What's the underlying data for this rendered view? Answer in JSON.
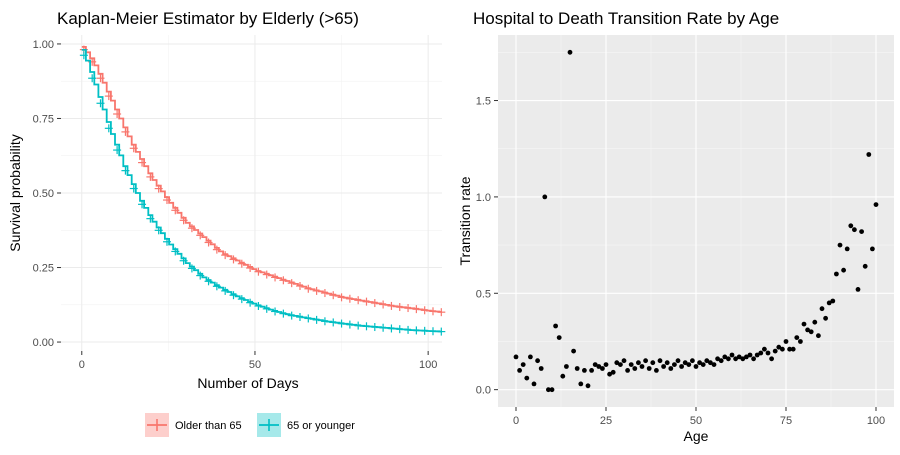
{
  "chart_data": [
    {
      "type": "line",
      "title": "Kaplan-Meier Estimator by Elderly (>65)",
      "xlabel": "Number of Days",
      "ylabel": "Survival probability",
      "xlim": [
        -6,
        104
      ],
      "ylim": [
        -0.03,
        1.03
      ],
      "x_ticks": [
        0,
        50,
        100
      ],
      "y_ticks": [
        0.0,
        0.25,
        0.5,
        0.75,
        1.0
      ],
      "y_tick_labels": [
        "0.00",
        "0.25",
        "0.50",
        "0.75",
        "1.00"
      ],
      "grid": true,
      "legend_position": "bottom",
      "series": [
        {
          "name": "Older than 65",
          "color": "#F8766D",
          "x": [
            0,
            2,
            4,
            6,
            8,
            10,
            12,
            14,
            16,
            18,
            20,
            25,
            30,
            35,
            40,
            45,
            50,
            55,
            60,
            65,
            70,
            75,
            80,
            85,
            90,
            95,
            100,
            104
          ],
          "y": [
            0.99,
            0.96,
            0.92,
            0.87,
            0.82,
            0.77,
            0.72,
            0.67,
            0.63,
            0.59,
            0.55,
            0.47,
            0.4,
            0.35,
            0.3,
            0.27,
            0.24,
            0.22,
            0.2,
            0.18,
            0.165,
            0.15,
            0.14,
            0.13,
            0.12,
            0.113,
            0.105,
            0.1
          ]
        },
        {
          "name": "65 or younger",
          "color": "#00BFC4",
          "x": [
            0,
            2,
            4,
            6,
            8,
            10,
            12,
            14,
            16,
            18,
            20,
            25,
            30,
            35,
            40,
            45,
            50,
            55,
            60,
            65,
            70,
            75,
            80,
            85,
            90,
            95,
            100,
            104
          ],
          "y": [
            0.98,
            0.92,
            0.85,
            0.78,
            0.71,
            0.65,
            0.59,
            0.54,
            0.49,
            0.45,
            0.41,
            0.33,
            0.265,
            0.215,
            0.18,
            0.15,
            0.125,
            0.105,
            0.09,
            0.08,
            0.07,
            0.062,
            0.055,
            0.05,
            0.045,
            0.04,
            0.037,
            0.035
          ]
        }
      ]
    },
    {
      "type": "scatter",
      "title": "Hospital to Death Transition Rate by Age",
      "xlabel": "Age",
      "ylabel": "Transition rate",
      "xlim": [
        -5,
        105
      ],
      "ylim": [
        -0.09,
        1.84
      ],
      "x_ticks": [
        0,
        25,
        50,
        75,
        100
      ],
      "y_ticks": [
        0.0,
        0.5,
        1.0,
        1.5
      ],
      "y_tick_labels": [
        "0.0",
        "0.5",
        "1.0",
        "1.5"
      ],
      "grid": true,
      "point_color": "#000000",
      "panel_color": "#EBEBEB",
      "points": [
        [
          0,
          0.17
        ],
        [
          1,
          0.1
        ],
        [
          2,
          0.13
        ],
        [
          3,
          0.06
        ],
        [
          4,
          0.17
        ],
        [
          5,
          0.03
        ],
        [
          6,
          0.15
        ],
        [
          7,
          0.11
        ],
        [
          8,
          1.0
        ],
        [
          9,
          0.0
        ],
        [
          10,
          0.0
        ],
        [
          11,
          0.33
        ],
        [
          12,
          0.27
        ],
        [
          13,
          0.07
        ],
        [
          14,
          0.12
        ],
        [
          15,
          1.75
        ],
        [
          16,
          0.2
        ],
        [
          17,
          0.11
        ],
        [
          18,
          0.03
        ],
        [
          19,
          0.1
        ],
        [
          20,
          0.02
        ],
        [
          21,
          0.1
        ],
        [
          22,
          0.13
        ],
        [
          23,
          0.12
        ],
        [
          24,
          0.11
        ],
        [
          25,
          0.13
        ],
        [
          26,
          0.08
        ],
        [
          27,
          0.09
        ],
        [
          28,
          0.14
        ],
        [
          29,
          0.13
        ],
        [
          30,
          0.15
        ],
        [
          31,
          0.1
        ],
        [
          32,
          0.13
        ],
        [
          33,
          0.11
        ],
        [
          34,
          0.14
        ],
        [
          35,
          0.12
        ],
        [
          36,
          0.15
        ],
        [
          37,
          0.11
        ],
        [
          38,
          0.14
        ],
        [
          39,
          0.1
        ],
        [
          40,
          0.15
        ],
        [
          41,
          0.12
        ],
        [
          42,
          0.14
        ],
        [
          43,
          0.11
        ],
        [
          44,
          0.13
        ],
        [
          45,
          0.15
        ],
        [
          46,
          0.12
        ],
        [
          47,
          0.14
        ],
        [
          48,
          0.13
        ],
        [
          49,
          0.15
        ],
        [
          50,
          0.12
        ],
        [
          51,
          0.14
        ],
        [
          52,
          0.13
        ],
        [
          53,
          0.15
        ],
        [
          54,
          0.14
        ],
        [
          55,
          0.13
        ],
        [
          56,
          0.16
        ],
        [
          57,
          0.15
        ],
        [
          58,
          0.17
        ],
        [
          59,
          0.16
        ],
        [
          60,
          0.18
        ],
        [
          61,
          0.16
        ],
        [
          62,
          0.17
        ],
        [
          63,
          0.16
        ],
        [
          64,
          0.17
        ],
        [
          65,
          0.18
        ],
        [
          66,
          0.16
        ],
        [
          67,
          0.18
        ],
        [
          68,
          0.19
        ],
        [
          69,
          0.21
        ],
        [
          70,
          0.19
        ],
        [
          71,
          0.16
        ],
        [
          72,
          0.2
        ],
        [
          73,
          0.22
        ],
        [
          74,
          0.21
        ],
        [
          75,
          0.25
        ],
        [
          76,
          0.21
        ],
        [
          77,
          0.21
        ],
        [
          78,
          0.27
        ],
        [
          79,
          0.25
        ],
        [
          80,
          0.34
        ],
        [
          81,
          0.31
        ],
        [
          82,
          0.3
        ],
        [
          83,
          0.35
        ],
        [
          84,
          0.28
        ],
        [
          85,
          0.42
        ],
        [
          86,
          0.37
        ],
        [
          87,
          0.45
        ],
        [
          88,
          0.46
        ],
        [
          89,
          0.6
        ],
        [
          90,
          0.75
        ],
        [
          91,
          0.62
        ],
        [
          92,
          0.73
        ],
        [
          93,
          0.85
        ],
        [
          94,
          0.83
        ],
        [
          95,
          0.52
        ],
        [
          96,
          0.82
        ],
        [
          97,
          0.64
        ],
        [
          98,
          1.22
        ],
        [
          99,
          0.73
        ],
        [
          100,
          0.96
        ]
      ]
    }
  ]
}
